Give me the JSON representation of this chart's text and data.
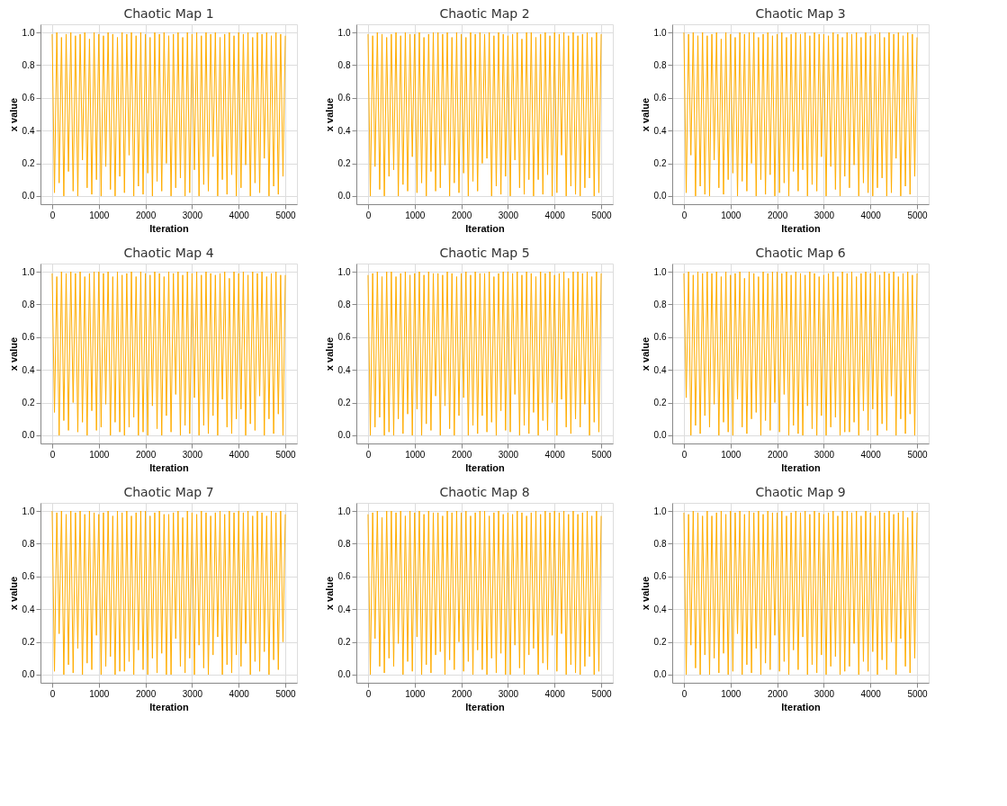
{
  "chart_data": [
    {
      "type": "line",
      "title": "Chaotic Map 1",
      "xlabel": "Iteration",
      "ylabel": "x value",
      "color": "#ffad00",
      "grid": true,
      "xlim": [
        -250,
        5250
      ],
      "ylim": [
        -0.05,
        1.05
      ],
      "xticks": [
        0,
        1000,
        2000,
        3000,
        4000,
        5000
      ],
      "yticks": [
        {
          "value": 0,
          "label": "0.0"
        },
        {
          "value": 0.2,
          "label": "0.2"
        },
        {
          "value": 0.4,
          "label": "0.4"
        },
        {
          "value": 0.6,
          "label": "0.6"
        },
        {
          "value": 0.8,
          "label": "0.8"
        },
        {
          "value": 1,
          "label": "1.0"
        }
      ],
      "x": [
        0,
        50,
        100,
        150,
        200,
        250,
        300,
        350,
        400,
        450,
        500,
        550,
        600,
        650,
        700,
        750,
        800,
        850,
        900,
        950,
        1000,
        1050,
        1100,
        1150,
        1200,
        1250,
        1300,
        1350,
        1400,
        1450,
        1500,
        1550,
        1600,
        1650,
        1700,
        1750,
        1800,
        1850,
        1900,
        1950,
        2000,
        2050,
        2100,
        2150,
        2200,
        2250,
        2300,
        2350,
        2400,
        2450,
        2500,
        2550,
        2600,
        2650,
        2700,
        2750,
        2800,
        2850,
        2900,
        2950,
        3000,
        3050,
        3100,
        3150,
        3200,
        3250,
        3300,
        3350,
        3400,
        3450,
        3500,
        3550,
        3600,
        3650,
        3700,
        3750,
        3800,
        3850,
        3900,
        3950,
        4000,
        4050,
        4100,
        4150,
        4200,
        4250,
        4300,
        4350,
        4400,
        4450,
        4500,
        4550,
        4600,
        4650,
        4700,
        4750,
        4800,
        4850,
        4900,
        4950,
        5000
      ],
      "values": [
        0.99,
        0.02,
        1.0,
        0.08,
        0.97,
        0.0,
        0.99,
        0.15,
        1.0,
        0.03,
        0.98,
        0.0,
        0.99,
        0.22,
        1.0,
        0.05,
        0.96,
        0.01,
        1.0,
        0.1,
        0.99,
        0.0,
        0.98,
        0.18,
        1.0,
        0.04,
        0.99,
        0.0,
        0.97,
        0.12,
        1.0,
        0.02,
        0.99,
        0.25,
        1.0,
        0.0,
        0.98,
        0.06,
        1.0,
        0.01,
        0.99,
        0.14,
        0.97,
        0.0,
        1.0,
        0.09,
        0.99,
        0.03,
        1.0,
        0.2,
        0.98,
        0.0,
        0.99,
        0.05,
        1.0,
        0.11,
        0.97,
        0.0,
        1.0,
        0.02,
        0.99,
        0.16,
        1.0,
        0.0,
        0.98,
        0.07,
        1.0,
        0.03,
        0.99,
        0.24,
        1.0,
        0.0,
        0.97,
        0.1,
        0.99,
        0.01,
        1.0,
        0.13,
        0.98,
        0.0,
        1.0,
        0.05,
        0.99,
        0.19,
        1.0,
        0.0,
        0.97,
        0.08,
        1.0,
        0.02,
        0.99,
        0.23,
        1.0,
        0.0,
        0.98,
        0.06,
        1.0,
        0.01,
        0.99,
        0.12,
        0.98
      ]
    },
    {
      "type": "line",
      "title": "Chaotic Map 2",
      "xlabel": "Iteration",
      "ylabel": "x value",
      "color": "#ffad00",
      "grid": true,
      "xlim": [
        -250,
        5250
      ],
      "ylim": [
        -0.05,
        1.05
      ],
      "xticks": [
        0,
        1000,
        2000,
        3000,
        4000,
        5000
      ],
      "yticks": [
        {
          "value": 0,
          "label": "0.0"
        },
        {
          "value": 0.2,
          "label": "0.2"
        },
        {
          "value": 0.4,
          "label": "0.4"
        },
        {
          "value": 0.6,
          "label": "0.6"
        },
        {
          "value": 0.8,
          "label": "0.8"
        },
        {
          "value": 1,
          "label": "1.0"
        }
      ],
      "x": [
        0,
        50,
        100,
        150,
        200,
        250,
        300,
        350,
        400,
        450,
        500,
        550,
        600,
        650,
        700,
        750,
        800,
        850,
        900,
        950,
        1000,
        1050,
        1100,
        1150,
        1200,
        1250,
        1300,
        1350,
        1400,
        1450,
        1500,
        1550,
        1600,
        1650,
        1700,
        1750,
        1800,
        1850,
        1900,
        1950,
        2000,
        2050,
        2100,
        2150,
        2200,
        2250,
        2300,
        2350,
        2400,
        2450,
        2500,
        2550,
        2600,
        2650,
        2700,
        2750,
        2800,
        2850,
        2900,
        2950,
        3000,
        3050,
        3100,
        3150,
        3200,
        3250,
        3300,
        3350,
        3400,
        3450,
        3500,
        3550,
        3600,
        3650,
        3700,
        3750,
        3800,
        3850,
        3900,
        3950,
        4000,
        4050,
        4100,
        4150,
        4200,
        4250,
        4300,
        4350,
        4400,
        4450,
        4500,
        4550,
        4600,
        4650,
        4700,
        4750,
        4800,
        4850,
        4900,
        4950,
        5000
      ],
      "values": [
        0.99,
        0.0,
        0.98,
        0.18,
        1.0,
        0.04,
        0.99,
        0.0,
        0.97,
        0.12,
        0.99,
        0.16,
        1.0,
        0.0,
        0.98,
        0.07,
        1.0,
        0.03,
        0.99,
        0.24,
        0.99,
        0.02,
        1.0,
        0.08,
        0.97,
        0.0,
        0.99,
        0.15,
        1.0,
        0.03,
        1.0,
        0.05,
        0.99,
        0.19,
        1.0,
        0.0,
        0.97,
        0.08,
        1.0,
        0.02,
        0.99,
        0.14,
        0.97,
        0.0,
        1.0,
        0.09,
        0.99,
        0.03,
        1.0,
        0.2,
        0.99,
        0.23,
        1.0,
        0.0,
        0.98,
        0.06,
        1.0,
        0.01,
        0.99,
        0.12,
        0.98,
        0.0,
        0.99,
        0.22,
        1.0,
        0.05,
        0.96,
        0.01,
        1.0,
        0.1,
        1.0,
        0.0,
        0.97,
        0.1,
        0.99,
        0.01,
        1.0,
        0.13,
        0.98,
        0.0,
        1.0,
        0.02,
        0.99,
        0.25,
        1.0,
        0.0,
        0.98,
        0.06,
        1.0,
        0.01,
        0.98,
        0.0,
        0.99,
        0.05,
        1.0,
        0.11,
        0.97,
        0.0,
        1.0,
        0.02,
        0.99
      ]
    },
    {
      "type": "line",
      "title": "Chaotic Map 3",
      "xlabel": "Iteration",
      "ylabel": "x value",
      "color": "#ffad00",
      "grid": true,
      "xlim": [
        -250,
        5250
      ],
      "ylim": [
        -0.05,
        1.05
      ],
      "xticks": [
        0,
        1000,
        2000,
        3000,
        4000,
        5000
      ],
      "yticks": [
        {
          "value": 0,
          "label": "0.0"
        },
        {
          "value": 0.2,
          "label": "0.2"
        },
        {
          "value": 0.4,
          "label": "0.4"
        },
        {
          "value": 0.6,
          "label": "0.6"
        },
        {
          "value": 0.8,
          "label": "0.8"
        },
        {
          "value": 1,
          "label": "1.0"
        }
      ],
      "x": [
        0,
        50,
        100,
        150,
        200,
        250,
        300,
        350,
        400,
        450,
        500,
        550,
        600,
        650,
        700,
        750,
        800,
        850,
        900,
        950,
        1000,
        1050,
        1100,
        1150,
        1200,
        1250,
        1300,
        1350,
        1400,
        1450,
        1500,
        1550,
        1600,
        1650,
        1700,
        1750,
        1800,
        1850,
        1900,
        1950,
        2000,
        2050,
        2100,
        2150,
        2200,
        2250,
        2300,
        2350,
        2400,
        2450,
        2500,
        2550,
        2600,
        2650,
        2700,
        2750,
        2800,
        2850,
        2900,
        2950,
        3000,
        3050,
        3100,
        3150,
        3200,
        3250,
        3300,
        3350,
        3400,
        3450,
        3500,
        3550,
        3600,
        3650,
        3700,
        3750,
        3800,
        3850,
        3900,
        3950,
        4000,
        4050,
        4100,
        4150,
        4200,
        4250,
        4300,
        4350,
        4400,
        4450,
        4500,
        4550,
        4600,
        4650,
        4700,
        4750,
        4800,
        4850,
        4900,
        4950,
        5000
      ],
      "values": [
        1.0,
        0.02,
        0.99,
        0.25,
        1.0,
        0.0,
        0.98,
        0.06,
        1.0,
        0.01,
        0.98,
        0.0,
        0.99,
        0.22,
        1.0,
        0.05,
        0.96,
        0.01,
        1.0,
        0.1,
        0.99,
        0.14,
        0.97,
        0.0,
        1.0,
        0.09,
        0.99,
        0.03,
        1.0,
        0.2,
        1.0,
        0.0,
        0.97,
        0.1,
        0.99,
        0.01,
        1.0,
        0.13,
        0.98,
        0.0,
        0.99,
        0.02,
        1.0,
        0.08,
        0.97,
        0.0,
        0.99,
        0.15,
        1.0,
        0.03,
        0.99,
        0.16,
        1.0,
        0.0,
        0.98,
        0.07,
        1.0,
        0.03,
        0.99,
        0.24,
        0.99,
        0.0,
        0.98,
        0.18,
        1.0,
        0.04,
        0.99,
        0.0,
        0.97,
        0.12,
        1.0,
        0.05,
        0.99,
        0.19,
        1.0,
        0.0,
        0.97,
        0.08,
        1.0,
        0.02,
        0.98,
        0.0,
        0.99,
        0.05,
        1.0,
        0.11,
        0.97,
        0.0,
        1.0,
        0.02,
        0.99,
        0.23,
        1.0,
        0.0,
        0.98,
        0.06,
        1.0,
        0.01,
        0.99,
        0.12,
        0.97
      ]
    },
    {
      "type": "line",
      "title": "Chaotic Map 4",
      "xlabel": "Iteration",
      "ylabel": "x value",
      "color": "#ffad00",
      "grid": true,
      "xlim": [
        -250,
        5250
      ],
      "ylim": [
        -0.05,
        1.05
      ],
      "xticks": [
        0,
        1000,
        2000,
        3000,
        4000,
        5000
      ],
      "yticks": [
        {
          "value": 0,
          "label": "0.0"
        },
        {
          "value": 0.2,
          "label": "0.2"
        },
        {
          "value": 0.4,
          "label": "0.4"
        },
        {
          "value": 0.6,
          "label": "0.6"
        },
        {
          "value": 0.8,
          "label": "0.8"
        },
        {
          "value": 1,
          "label": "1.0"
        }
      ],
      "x": [
        0,
        50,
        100,
        150,
        200,
        250,
        300,
        350,
        400,
        450,
        500,
        550,
        600,
        650,
        700,
        750,
        800,
        850,
        900,
        950,
        1000,
        1050,
        1100,
        1150,
        1200,
        1250,
        1300,
        1350,
        1400,
        1450,
        1500,
        1550,
        1600,
        1650,
        1700,
        1750,
        1800,
        1850,
        1900,
        1950,
        2000,
        2050,
        2100,
        2150,
        2200,
        2250,
        2300,
        2350,
        2400,
        2450,
        2500,
        2550,
        2600,
        2650,
        2700,
        2750,
        2800,
        2850,
        2900,
        2950,
        3000,
        3050,
        3100,
        3150,
        3200,
        3250,
        3300,
        3350,
        3400,
        3450,
        3500,
        3550,
        3600,
        3650,
        3700,
        3750,
        3800,
        3850,
        3900,
        3950,
        4000,
        4050,
        4100,
        4150,
        4200,
        4250,
        4300,
        4350,
        4400,
        4450,
        4500,
        4550,
        4600,
        4650,
        4700,
        4750,
        4800,
        4850,
        4900,
        4950,
        5000
      ],
      "values": [
        0.99,
        0.14,
        0.97,
        0.0,
        1.0,
        0.09,
        0.99,
        0.03,
        1.0,
        0.2,
        0.99,
        0.02,
        1.0,
        0.08,
        0.97,
        0.0,
        0.99,
        0.15,
        1.0,
        0.03,
        1.0,
        0.05,
        0.99,
        0.19,
        1.0,
        0.0,
        0.97,
        0.08,
        1.0,
        0.02,
        0.98,
        0.0,
        0.99,
        0.05,
        1.0,
        0.11,
        0.97,
        0.0,
        1.0,
        0.02,
        0.99,
        0.0,
        0.98,
        0.18,
        1.0,
        0.04,
        0.99,
        0.0,
        0.97,
        0.12,
        1.0,
        0.02,
        0.99,
        0.25,
        1.0,
        0.0,
        0.98,
        0.06,
        1.0,
        0.01,
        0.99,
        0.23,
        1.0,
        0.0,
        0.98,
        0.06,
        1.0,
        0.01,
        0.99,
        0.12,
        0.98,
        0.0,
        0.99,
        0.22,
        1.0,
        0.05,
        0.96,
        0.01,
        1.0,
        0.1,
        0.99,
        0.16,
        1.0,
        0.0,
        0.98,
        0.07,
        1.0,
        0.03,
        0.99,
        0.24,
        1.0,
        0.0,
        0.97,
        0.1,
        0.99,
        0.01,
        1.0,
        0.13,
        0.98,
        0.0,
        0.98
      ]
    },
    {
      "type": "line",
      "title": "Chaotic Map 5",
      "xlabel": "Iteration",
      "ylabel": "x value",
      "color": "#ffad00",
      "grid": true,
      "xlim": [
        -250,
        5250
      ],
      "ylim": [
        -0.05,
        1.05
      ],
      "xticks": [
        0,
        1000,
        2000,
        3000,
        4000,
        5000
      ],
      "yticks": [
        {
          "value": 0,
          "label": "0.0"
        },
        {
          "value": 0.2,
          "label": "0.2"
        },
        {
          "value": 0.4,
          "label": "0.4"
        },
        {
          "value": 0.6,
          "label": "0.6"
        },
        {
          "value": 0.8,
          "label": "0.8"
        },
        {
          "value": 1,
          "label": "1.0"
        }
      ],
      "x": [
        0,
        50,
        100,
        150,
        200,
        250,
        300,
        350,
        400,
        450,
        500,
        550,
        600,
        650,
        700,
        750,
        800,
        850,
        900,
        950,
        1000,
        1050,
        1100,
        1150,
        1200,
        1250,
        1300,
        1350,
        1400,
        1450,
        1500,
        1550,
        1600,
        1650,
        1700,
        1750,
        1800,
        1850,
        1900,
        1950,
        2000,
        2050,
        2100,
        2150,
        2200,
        2250,
        2300,
        2350,
        2400,
        2450,
        2500,
        2550,
        2600,
        2650,
        2700,
        2750,
        2800,
        2850,
        2900,
        2950,
        3000,
        3050,
        3100,
        3150,
        3200,
        3250,
        3300,
        3350,
        3400,
        3450,
        3500,
        3550,
        3600,
        3650,
        3700,
        3750,
        3800,
        3850,
        3900,
        3950,
        4000,
        4050,
        4100,
        4150,
        4200,
        4250,
        4300,
        4350,
        4400,
        4450,
        4500,
        4550,
        4600,
        4650,
        4700,
        4750,
        4800,
        4850,
        4900,
        4950,
        5000
      ],
      "values": [
        0.98,
        0.0,
        0.99,
        0.05,
        1.0,
        0.11,
        0.97,
        0.0,
        1.0,
        0.02,
        1.0,
        0.0,
        0.97,
        0.1,
        0.99,
        0.01,
        1.0,
        0.13,
        0.98,
        0.0,
        0.99,
        0.16,
        1.0,
        0.0,
        0.98,
        0.07,
        1.0,
        0.03,
        0.99,
        0.24,
        0.99,
        0.0,
        0.98,
        0.18,
        1.0,
        0.04,
        0.99,
        0.0,
        0.97,
        0.12,
        0.99,
        0.23,
        1.0,
        0.0,
        0.98,
        0.06,
        1.0,
        0.01,
        0.99,
        0.12,
        0.99,
        0.02,
        1.0,
        0.08,
        0.97,
        0.0,
        0.99,
        0.15,
        1.0,
        0.03,
        1.0,
        0.02,
        0.99,
        0.25,
        1.0,
        0.0,
        0.98,
        0.06,
        1.0,
        0.01,
        0.99,
        0.14,
        0.97,
        0.0,
        1.0,
        0.09,
        0.99,
        0.03,
        1.0,
        0.2,
        0.98,
        0.0,
        0.99,
        0.22,
        1.0,
        0.05,
        0.96,
        0.01,
        1.0,
        0.1,
        1.0,
        0.05,
        0.99,
        0.19,
        1.0,
        0.0,
        0.97,
        0.08,
        1.0,
        0.02,
        0.99
      ]
    },
    {
      "type": "line",
      "title": "Chaotic Map 6",
      "xlabel": "Iteration",
      "ylabel": "x value",
      "color": "#ffad00",
      "grid": true,
      "xlim": [
        -250,
        5250
      ],
      "ylim": [
        -0.05,
        1.05
      ],
      "xticks": [
        0,
        1000,
        2000,
        3000,
        4000,
        5000
      ],
      "yticks": [
        {
          "value": 0,
          "label": "0.0"
        },
        {
          "value": 0.2,
          "label": "0.2"
        },
        {
          "value": 0.4,
          "label": "0.4"
        },
        {
          "value": 0.6,
          "label": "0.6"
        },
        {
          "value": 0.8,
          "label": "0.8"
        },
        {
          "value": 1,
          "label": "1.0"
        }
      ],
      "x": [
        0,
        50,
        100,
        150,
        200,
        250,
        300,
        350,
        400,
        450,
        500,
        550,
        600,
        650,
        700,
        750,
        800,
        850,
        900,
        950,
        1000,
        1050,
        1100,
        1150,
        1200,
        1250,
        1300,
        1350,
        1400,
        1450,
        1500,
        1550,
        1600,
        1650,
        1700,
        1750,
        1800,
        1850,
        1900,
        1950,
        2000,
        2050,
        2100,
        2150,
        2200,
        2250,
        2300,
        2350,
        2400,
        2450,
        2500,
        2550,
        2600,
        2650,
        2700,
        2750,
        2800,
        2850,
        2900,
        2950,
        3000,
        3050,
        3100,
        3150,
        3200,
        3250,
        3300,
        3350,
        3400,
        3450,
        3500,
        3550,
        3600,
        3650,
        3700,
        3750,
        3800,
        3850,
        3900,
        3950,
        4000,
        4050,
        4100,
        4150,
        4200,
        4250,
        4300,
        4350,
        4400,
        4450,
        4500,
        4550,
        4600,
        4650,
        4700,
        4750,
        4800,
        4850,
        4900,
        4950,
        5000
      ],
      "values": [
        0.99,
        0.23,
        1.0,
        0.0,
        0.98,
        0.06,
        1.0,
        0.01,
        0.99,
        0.12,
        1.0,
        0.05,
        0.99,
        0.19,
        1.0,
        0.0,
        0.97,
        0.08,
        1.0,
        0.02,
        0.98,
        0.0,
        0.99,
        0.22,
        1.0,
        0.05,
        0.96,
        0.01,
        1.0,
        0.1,
        0.99,
        0.14,
        0.97,
        0.0,
        1.0,
        0.09,
        0.99,
        0.03,
        1.0,
        0.2,
        1.0,
        0.02,
        0.99,
        0.25,
        1.0,
        0.0,
        0.98,
        0.06,
        1.0,
        0.01,
        0.99,
        0.0,
        0.98,
        0.18,
        1.0,
        0.04,
        0.99,
        0.0,
        0.97,
        0.12,
        0.98,
        0.0,
        0.99,
        0.05,
        1.0,
        0.11,
        0.97,
        0.0,
        1.0,
        0.02,
        0.99,
        0.02,
        1.0,
        0.08,
        0.97,
        0.0,
        0.99,
        0.15,
        1.0,
        0.03,
        0.99,
        0.16,
        1.0,
        0.0,
        0.98,
        0.07,
        1.0,
        0.03,
        0.99,
        0.24,
        1.0,
        0.0,
        0.97,
        0.1,
        0.99,
        0.01,
        1.0,
        0.13,
        0.98,
        0.0,
        0.99
      ]
    },
    {
      "type": "line",
      "title": "Chaotic Map 7",
      "xlabel": "Iteration",
      "ylabel": "x value",
      "color": "#ffad00",
      "grid": true,
      "xlim": [
        -250,
        5250
      ],
      "ylim": [
        -0.05,
        1.05
      ],
      "xticks": [
        0,
        1000,
        2000,
        3000,
        4000,
        5000
      ],
      "yticks": [
        {
          "value": 0,
          "label": "0.0"
        },
        {
          "value": 0.2,
          "label": "0.2"
        },
        {
          "value": 0.4,
          "label": "0.4"
        },
        {
          "value": 0.6,
          "label": "0.6"
        },
        {
          "value": 0.8,
          "label": "0.8"
        },
        {
          "value": 1,
          "label": "1.0"
        }
      ],
      "x": [
        0,
        50,
        100,
        150,
        200,
        250,
        300,
        350,
        400,
        450,
        500,
        550,
        600,
        650,
        700,
        750,
        800,
        850,
        900,
        950,
        1000,
        1050,
        1100,
        1150,
        1200,
        1250,
        1300,
        1350,
        1400,
        1450,
        1500,
        1550,
        1600,
        1650,
        1700,
        1750,
        1800,
        1850,
        1900,
        1950,
        2000,
        2050,
        2100,
        2150,
        2200,
        2250,
        2300,
        2350,
        2400,
        2450,
        2500,
        2550,
        2600,
        2650,
        2700,
        2750,
        2800,
        2850,
        2900,
        2950,
        3000,
        3050,
        3100,
        3150,
        3200,
        3250,
        3300,
        3350,
        3400,
        3450,
        3500,
        3550,
        3600,
        3650,
        3700,
        3750,
        3800,
        3850,
        3900,
        3950,
        4000,
        4050,
        4100,
        4150,
        4200,
        4250,
        4300,
        4350,
        4400,
        4450,
        4500,
        4550,
        4600,
        4650,
        4700,
        4750,
        4800,
        4850,
        4900,
        4950,
        5000
      ],
      "values": [
        1.0,
        0.02,
        0.99,
        0.25,
        1.0,
        0.0,
        0.98,
        0.06,
        1.0,
        0.01,
        0.99,
        0.16,
        1.0,
        0.0,
        0.98,
        0.07,
        1.0,
        0.03,
        0.99,
        0.24,
        0.98,
        0.0,
        0.99,
        0.05,
        1.0,
        0.11,
        0.97,
        0.0,
        1.0,
        0.02,
        0.99,
        0.02,
        1.0,
        0.08,
        0.97,
        0.0,
        0.99,
        0.15,
        1.0,
        0.03,
        1.0,
        0.0,
        0.97,
        0.1,
        0.99,
        0.01,
        1.0,
        0.13,
        0.98,
        0.0,
        0.98,
        0.0,
        0.99,
        0.22,
        1.0,
        0.05,
        0.96,
        0.01,
        1.0,
        0.1,
        0.99,
        0.0,
        0.98,
        0.18,
        1.0,
        0.04,
        0.99,
        0.0,
        0.97,
        0.12,
        0.99,
        0.23,
        1.0,
        0.0,
        0.98,
        0.06,
        1.0,
        0.01,
        0.99,
        0.12,
        1.0,
        0.05,
        0.99,
        0.19,
        1.0,
        0.0,
        0.97,
        0.08,
        1.0,
        0.02,
        0.99,
        0.14,
        0.97,
        0.0,
        1.0,
        0.09,
        0.99,
        0.03,
        1.0,
        0.2,
        0.98
      ]
    },
    {
      "type": "line",
      "title": "Chaotic Map 8",
      "xlabel": "Iteration",
      "ylabel": "x value",
      "color": "#ffad00",
      "grid": true,
      "xlim": [
        -250,
        5250
      ],
      "ylim": [
        -0.05,
        1.05
      ],
      "xticks": [
        0,
        1000,
        2000,
        3000,
        4000,
        5000
      ],
      "yticks": [
        {
          "value": 0,
          "label": "0.0"
        },
        {
          "value": 0.2,
          "label": "0.2"
        },
        {
          "value": 0.4,
          "label": "0.4"
        },
        {
          "value": 0.6,
          "label": "0.6"
        },
        {
          "value": 0.8,
          "label": "0.8"
        },
        {
          "value": 1,
          "label": "1.0"
        }
      ],
      "x": [
        0,
        50,
        100,
        150,
        200,
        250,
        300,
        350,
        400,
        450,
        500,
        550,
        600,
        650,
        700,
        750,
        800,
        850,
        900,
        950,
        1000,
        1050,
        1100,
        1150,
        1200,
        1250,
        1300,
        1350,
        1400,
        1450,
        1500,
        1550,
        1600,
        1650,
        1700,
        1750,
        1800,
        1850,
        1900,
        1950,
        2000,
        2050,
        2100,
        2150,
        2200,
        2250,
        2300,
        2350,
        2400,
        2450,
        2500,
        2550,
        2600,
        2650,
        2700,
        2750,
        2800,
        2850,
        2900,
        2950,
        3000,
        3050,
        3100,
        3150,
        3200,
        3250,
        3300,
        3350,
        3400,
        3450,
        3500,
        3550,
        3600,
        3650,
        3700,
        3750,
        3800,
        3850,
        3900,
        3950,
        4000,
        4050,
        4100,
        4150,
        4200,
        4250,
        4300,
        4350,
        4400,
        4450,
        4500,
        4550,
        4600,
        4650,
        4700,
        4750,
        4800,
        4850,
        4900,
        4950,
        5000
      ],
      "values": [
        0.98,
        0.0,
        0.99,
        0.22,
        1.0,
        0.05,
        0.96,
        0.01,
        1.0,
        0.1,
        1.0,
        0.05,
        0.99,
        0.19,
        1.0,
        0.0,
        0.97,
        0.08,
        1.0,
        0.02,
        0.99,
        0.23,
        1.0,
        0.0,
        0.98,
        0.06,
        1.0,
        0.01,
        0.99,
        0.12,
        0.99,
        0.14,
        0.97,
        0.0,
        1.0,
        0.09,
        0.99,
        0.03,
        1.0,
        0.2,
        0.99,
        0.02,
        1.0,
        0.08,
        0.97,
        0.0,
        0.99,
        0.15,
        1.0,
        0.03,
        1.0,
        0.0,
        0.97,
        0.1,
        0.99,
        0.01,
        1.0,
        0.13,
        0.98,
        0.0,
        0.99,
        0.0,
        0.98,
        0.18,
        1.0,
        0.04,
        0.99,
        0.0,
        0.97,
        0.12,
        0.99,
        0.16,
        1.0,
        0.0,
        0.98,
        0.07,
        1.0,
        0.03,
        0.99,
        0.24,
        1.0,
        0.02,
        0.99,
        0.25,
        1.0,
        0.0,
        0.98,
        0.06,
        1.0,
        0.01,
        0.98,
        0.0,
        0.99,
        0.05,
        1.0,
        0.11,
        0.97,
        0.0,
        1.0,
        0.02,
        0.97
      ]
    },
    {
      "type": "line",
      "title": "Chaotic Map 9",
      "xlabel": "Iteration",
      "ylabel": "x value",
      "color": "#ffad00",
      "grid": true,
      "xlim": [
        -250,
        5250
      ],
      "ylim": [
        -0.05,
        1.05
      ],
      "xticks": [
        0,
        1000,
        2000,
        3000,
        4000,
        5000
      ],
      "yticks": [
        {
          "value": 0,
          "label": "0.0"
        },
        {
          "value": 0.2,
          "label": "0.2"
        },
        {
          "value": 0.4,
          "label": "0.4"
        },
        {
          "value": 0.6,
          "label": "0.6"
        },
        {
          "value": 0.8,
          "label": "0.8"
        },
        {
          "value": 1,
          "label": "1.0"
        }
      ],
      "x": [
        0,
        50,
        100,
        150,
        200,
        250,
        300,
        350,
        400,
        450,
        500,
        550,
        600,
        650,
        700,
        750,
        800,
        850,
        900,
        950,
        1000,
        1050,
        1100,
        1150,
        1200,
        1250,
        1300,
        1350,
        1400,
        1450,
        1500,
        1550,
        1600,
        1650,
        1700,
        1750,
        1800,
        1850,
        1900,
        1950,
        2000,
        2050,
        2100,
        2150,
        2200,
        2250,
        2300,
        2350,
        2400,
        2450,
        2500,
        2550,
        2600,
        2650,
        2700,
        2750,
        2800,
        2850,
        2900,
        2950,
        3000,
        3050,
        3100,
        3150,
        3200,
        3250,
        3300,
        3350,
        3400,
        3450,
        3500,
        3550,
        3600,
        3650,
        3700,
        3750,
        3800,
        3850,
        3900,
        3950,
        4000,
        4050,
        4100,
        4150,
        4200,
        4250,
        4300,
        4350,
        4400,
        4450,
        4500,
        4550,
        4600,
        4650,
        4700,
        4750,
        4800,
        4850,
        4900,
        4950,
        5000
      ],
      "values": [
        0.99,
        0.0,
        0.98,
        0.18,
        1.0,
        0.04,
        0.99,
        0.0,
        0.97,
        0.12,
        1.0,
        0.0,
        0.97,
        0.1,
        0.99,
        0.01,
        1.0,
        0.13,
        0.98,
        0.0,
        1.0,
        0.02,
        0.99,
        0.25,
        1.0,
        0.0,
        0.98,
        0.06,
        1.0,
        0.01,
        0.99,
        0.16,
        1.0,
        0.0,
        0.98,
        0.07,
        1.0,
        0.03,
        0.99,
        0.24,
        0.99,
        0.02,
        1.0,
        0.08,
        0.97,
        0.0,
        0.99,
        0.15,
        1.0,
        0.03,
        0.99,
        0.23,
        1.0,
        0.0,
        0.98,
        0.06,
        1.0,
        0.01,
        0.99,
        0.12,
        0.98,
        0.0,
        0.99,
        0.05,
        1.0,
        0.11,
        0.97,
        0.0,
        1.0,
        0.02,
        1.0,
        0.05,
        0.99,
        0.19,
        1.0,
        0.0,
        0.97,
        0.08,
        1.0,
        0.02,
        0.99,
        0.14,
        0.97,
        0.0,
        1.0,
        0.09,
        0.99,
        0.03,
        1.0,
        0.2,
        0.98,
        0.0,
        0.99,
        0.22,
        1.0,
        0.05,
        0.96,
        0.01,
        1.0,
        0.1,
        0.99
      ]
    }
  ]
}
